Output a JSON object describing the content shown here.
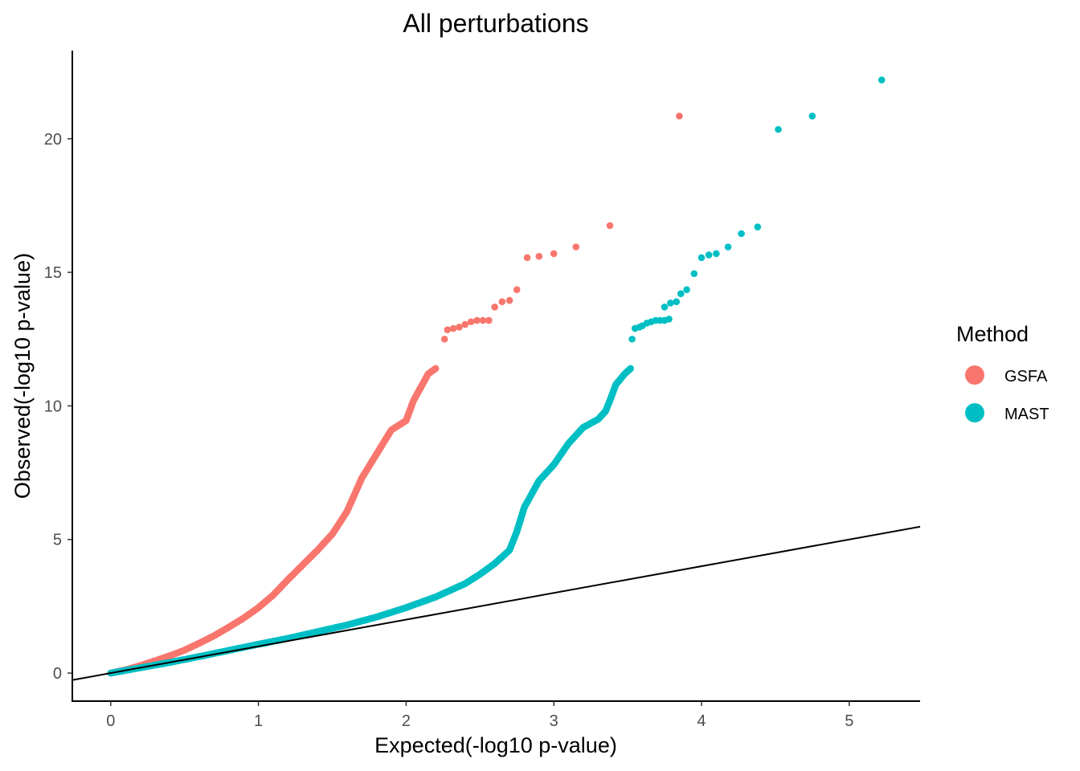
{
  "chart_data": {
    "type": "scatter",
    "title": "All perturbations",
    "xlabel": "Expected(-log10 p-value)",
    "ylabel": "Observed(-log10 p-value)",
    "xlim": [
      -0.26,
      5.48
    ],
    "ylim": [
      -1.05,
      23.3
    ],
    "x_ticks": [
      0,
      1,
      2,
      3,
      4,
      5
    ],
    "y_ticks": [
      0,
      5,
      10,
      15,
      20
    ],
    "grid": false,
    "legend": {
      "title": "Method",
      "position": "right"
    },
    "reference_line": {
      "slope": 1,
      "intercept": 0
    },
    "series": [
      {
        "name": "GSFA",
        "color": "#F8766D",
        "curve": [
          [
            0,
            0
          ],
          [
            0.1,
            0.12
          ],
          [
            0.2,
            0.28
          ],
          [
            0.3,
            0.46
          ],
          [
            0.4,
            0.65
          ],
          [
            0.5,
            0.86
          ],
          [
            0.6,
            1.12
          ],
          [
            0.7,
            1.4
          ],
          [
            0.8,
            1.72
          ],
          [
            0.9,
            2.06
          ],
          [
            1.0,
            2.45
          ],
          [
            1.1,
            2.92
          ],
          [
            1.2,
            3.5
          ],
          [
            1.3,
            4.05
          ],
          [
            1.4,
            4.6
          ],
          [
            1.5,
            5.2
          ],
          [
            1.6,
            6.05
          ],
          [
            1.7,
            7.3
          ],
          [
            1.8,
            8.2
          ],
          [
            1.9,
            9.1
          ],
          [
            2.0,
            9.45
          ],
          [
            2.05,
            10.2
          ],
          [
            2.1,
            10.7
          ],
          [
            2.15,
            11.2
          ],
          [
            2.2,
            11.4
          ]
        ],
        "tail_points": [
          [
            2.26,
            12.5
          ],
          [
            2.28,
            12.85
          ],
          [
            2.32,
            12.9
          ],
          [
            2.36,
            12.95
          ],
          [
            2.4,
            13.05
          ],
          [
            2.44,
            13.15
          ],
          [
            2.48,
            13.2
          ],
          [
            2.52,
            13.2
          ],
          [
            2.56,
            13.2
          ],
          [
            2.6,
            13.7
          ],
          [
            2.65,
            13.9
          ],
          [
            2.7,
            13.95
          ],
          [
            2.75,
            14.35
          ],
          [
            2.82,
            15.55
          ],
          [
            2.9,
            15.6
          ],
          [
            3.0,
            15.7
          ],
          [
            3.15,
            15.95
          ],
          [
            3.38,
            16.75
          ],
          [
            3.85,
            20.85
          ]
        ]
      },
      {
        "name": "MAST",
        "color": "#00BFC4",
        "curve": [
          [
            0,
            0
          ],
          [
            0.2,
            0.2
          ],
          [
            0.4,
            0.4
          ],
          [
            0.6,
            0.62
          ],
          [
            0.8,
            0.85
          ],
          [
            1.0,
            1.08
          ],
          [
            1.2,
            1.3
          ],
          [
            1.4,
            1.55
          ],
          [
            1.6,
            1.8
          ],
          [
            1.8,
            2.1
          ],
          [
            2.0,
            2.45
          ],
          [
            2.2,
            2.85
          ],
          [
            2.4,
            3.35
          ],
          [
            2.5,
            3.7
          ],
          [
            2.6,
            4.1
          ],
          [
            2.7,
            4.6
          ],
          [
            2.75,
            5.3
          ],
          [
            2.8,
            6.2
          ],
          [
            2.9,
            7.2
          ],
          [
            3.0,
            7.8
          ],
          [
            3.1,
            8.6
          ],
          [
            3.2,
            9.2
          ],
          [
            3.3,
            9.5
          ],
          [
            3.35,
            9.8
          ],
          [
            3.38,
            10.2
          ],
          [
            3.42,
            10.8
          ],
          [
            3.48,
            11.2
          ],
          [
            3.52,
            11.4
          ]
        ],
        "tail_points": [
          [
            3.53,
            12.5
          ],
          [
            3.55,
            12.9
          ],
          [
            3.58,
            12.95
          ],
          [
            3.6,
            13.0
          ],
          [
            3.63,
            13.1
          ],
          [
            3.66,
            13.15
          ],
          [
            3.69,
            13.2
          ],
          [
            3.72,
            13.2
          ],
          [
            3.75,
            13.2
          ],
          [
            3.78,
            13.25
          ],
          [
            3.75,
            13.7
          ],
          [
            3.79,
            13.85
          ],
          [
            3.83,
            13.9
          ],
          [
            3.86,
            14.2
          ],
          [
            3.9,
            14.35
          ],
          [
            3.95,
            14.95
          ],
          [
            4.0,
            15.55
          ],
          [
            4.05,
            15.65
          ],
          [
            4.1,
            15.7
          ],
          [
            4.18,
            15.95
          ],
          [
            4.27,
            16.45
          ],
          [
            4.38,
            16.7
          ],
          [
            4.52,
            20.35
          ],
          [
            4.75,
            20.85
          ],
          [
            5.22,
            22.2
          ]
        ]
      }
    ]
  }
}
